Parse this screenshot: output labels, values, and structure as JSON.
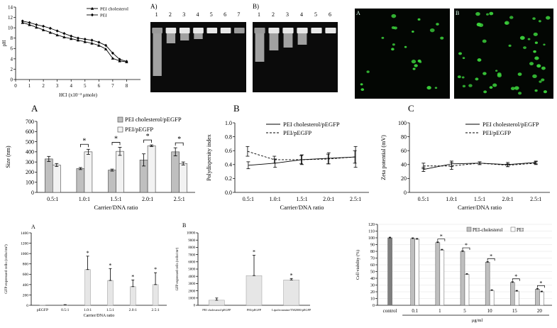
{
  "chart_data": [
    {
      "id": "ph",
      "type": "line",
      "title": "",
      "xlabel": "HCl (x10⁻³ μmole)",
      "ylabel": "pH",
      "xlim": [
        0,
        9
      ],
      "ylim": [
        0,
        14
      ],
      "xticks": [
        "0",
        "1",
        "2",
        "3",
        "4",
        "5",
        "6",
        "7",
        "8"
      ],
      "yticks": [
        "0",
        "2",
        "4",
        "6",
        "8",
        "10",
        "12",
        "14"
      ],
      "legend_position": "top-right",
      "series": [
        {
          "name": "PEI cholesterol",
          "marker": "triangle",
          "x": [
            0.5,
            1,
            1.5,
            2,
            2.5,
            3,
            3.5,
            4,
            4.5,
            5,
            5.5,
            6,
            6.5,
            7,
            7.5,
            8
          ],
          "y": [
            11.0,
            10.6,
            10.1,
            9.6,
            9.1,
            8.6,
            8.2,
            7.9,
            7.6,
            7.3,
            7.0,
            6.6,
            5.9,
            4.1,
            3.6,
            3.4
          ]
        },
        {
          "name": "PEI",
          "marker": "diamond",
          "x": [
            0.5,
            1,
            1.5,
            2,
            2.5,
            3,
            3.5,
            4,
            4.5,
            5,
            5.5,
            6,
            6.5,
            7,
            7.5,
            8
          ],
          "y": [
            11.3,
            11.0,
            10.6,
            10.3,
            9.9,
            9.4,
            8.9,
            8.4,
            8.0,
            7.8,
            7.6,
            7.2,
            6.6,
            5.1,
            3.9,
            3.5
          ]
        }
      ]
    },
    {
      "id": "gels",
      "type": "image",
      "panels": [
        {
          "label": "A)",
          "lanes": [
            "1",
            "2",
            "3",
            "4",
            "5",
            "6",
            "7"
          ]
        },
        {
          "label": "B)",
          "lanes": [
            "1",
            "2",
            "3",
            "4",
            "5",
            "6"
          ]
        }
      ]
    },
    {
      "id": "fluor",
      "type": "image",
      "panels": [
        {
          "label": "A"
        },
        {
          "label": "B"
        }
      ]
    },
    {
      "id": "size",
      "type": "bar",
      "panel_label": "A",
      "xlabel": "Carrier/DNA ratio",
      "ylabel": "Size (nm)",
      "ylim": [
        0,
        700
      ],
      "yticks": [
        "0",
        "100",
        "200",
        "300",
        "400",
        "500",
        "600",
        "700"
      ],
      "categories": [
        "0.5:1",
        "1.0:1",
        "1.5:1",
        "2.0:1",
        "2.5:1"
      ],
      "legend_position": "top-right",
      "series": [
        {
          "name": "PEI cholesterol/pEGFP",
          "color": "#bfbfbf",
          "values": [
            330,
            235,
            220,
            320,
            400
          ],
          "errors": [
            25,
            10,
            10,
            60,
            40
          ]
        },
        {
          "name": "PEI/pEGFP",
          "color": "#f2f2f2",
          "values": [
            270,
            400,
            405,
            460,
            285
          ],
          "errors": [
            15,
            25,
            40,
            8,
            15
          ]
        }
      ],
      "significance": [
        "",
        "*",
        "*",
        "*",
        "*"
      ]
    },
    {
      "id": "pdi",
      "type": "line",
      "panel_label": "B",
      "xlabel": "Carrier/DNA ratio",
      "ylabel": "Polydispersity index",
      "ylim": [
        0,
        1
      ],
      "yticks": [
        "0.0",
        "0.2",
        "0.4",
        "0.6",
        "0.8",
        "1.0"
      ],
      "categories": [
        "0.5:1",
        "1.0:1",
        "1.5:1",
        "2.0:1",
        "2.5:1"
      ],
      "legend_position": "top-right",
      "series": [
        {
          "name": "PEI cholesterol/pEGFP",
          "style": "solid",
          "values": [
            0.39,
            0.42,
            0.47,
            0.49,
            0.51
          ],
          "errors": [
            0.05,
            0.06,
            0.07,
            0.08,
            0.15
          ]
        },
        {
          "name": "PEI/pEGFP",
          "style": "dashed",
          "values": [
            0.59,
            0.47,
            0.47,
            0.48,
            0.51
          ],
          "errors": [
            0.07,
            0.05,
            0.06,
            0.07,
            0.09
          ]
        }
      ]
    },
    {
      "id": "zeta",
      "type": "line",
      "panel_label": "C",
      "xlabel": "Carrier/DNA ratio",
      "ylabel": "Zeta potential  (mV)",
      "ylim": [
        0,
        100
      ],
      "yticks": [
        "0",
        "20",
        "40",
        "60",
        "80",
        "100"
      ],
      "categories": [
        "0.5:1",
        "1.0:1",
        "1.5:1",
        "2.0:1",
        "2.5:1"
      ],
      "legend_position": "top-right",
      "series": [
        {
          "name": "PEI cholesterol/pEGFP",
          "style": "solid",
          "values": [
            33,
            41,
            42,
            40,
            43
          ],
          "errors": [
            3,
            4,
            2,
            3,
            2
          ]
        },
        {
          "name": "PEI/pEGFP",
          "style": "dashed",
          "values": [
            38,
            38,
            42,
            39,
            42
          ],
          "errors": [
            4,
            5,
            2,
            2,
            2
          ]
        }
      ]
    },
    {
      "id": "gfp_a",
      "type": "bar",
      "panel_label": "A",
      "xlabel": "Carrier/DNA ratio",
      "ylabel": "GFP expressed cells (cells/cm²)",
      "ylim": [
        0,
        1400
      ],
      "yticks": [
        "0",
        "200",
        "400",
        "600",
        "800",
        "1000",
        "1200",
        "1400"
      ],
      "categories": [
        "pEGFP",
        "0.5:1",
        "1.0:1",
        "1.5:1",
        "2.0:1",
        "2.5:1"
      ],
      "values": [
        2,
        10,
        690,
        480,
        360,
        400
      ],
      "errors": [
        0,
        2,
        260,
        230,
        130,
        230
      ],
      "significance": [
        "",
        "",
        "*",
        "*",
        "*",
        "*"
      ]
    },
    {
      "id": "gfp_b",
      "type": "bar",
      "panel_label": "B",
      "ylabel": "GFP expressed cells (cells/cm²)",
      "ylim": [
        0,
        10000
      ],
      "yticks": [
        "0",
        "1000",
        "2000",
        "3000",
        "4000",
        "5000",
        "6000",
        "7000",
        "8000",
        "9000",
        "10000"
      ],
      "categories": [
        "PEI cholesterol/pEGFP",
        "PEI/pEGFP",
        "Lipofectamine/TM2000/pEGFP"
      ],
      "values": [
        700,
        4100,
        3500
      ],
      "errors": [
        300,
        2800,
        200
      ],
      "significance": [
        "",
        "*",
        "*"
      ]
    },
    {
      "id": "viability",
      "type": "bar",
      "xlabel": "μg/ml",
      "ylabel": "Cell viability  (%)",
      "ylim": [
        0,
        120
      ],
      "yticks": [
        "0",
        "10",
        "20",
        "30",
        "40",
        "50",
        "60",
        "70",
        "80",
        "90",
        "100",
        "110",
        "120"
      ],
      "categories": [
        "control",
        "0.1",
        "1",
        "5",
        "10",
        "15",
        "20"
      ],
      "legend_position": "top-right",
      "series": [
        {
          "name": "PEI-cholesterol",
          "color": "#bfbfbf",
          "values": [
            100,
            99,
            93,
            80,
            64,
            34,
            24
          ],
          "errors": [
            1,
            1,
            1,
            1,
            1,
            1,
            1
          ]
        },
        {
          "name": "PEI",
          "color": "#ffffff",
          "values": [
            null,
            98,
            82,
            46,
            22,
            21,
            20
          ],
          "errors": [
            0,
            1,
            1,
            1,
            1,
            1,
            1
          ]
        }
      ],
      "control_color": "#7f7f7f",
      "significance": [
        "",
        "",
        "*",
        "*",
        "*",
        "*",
        "*"
      ]
    }
  ]
}
